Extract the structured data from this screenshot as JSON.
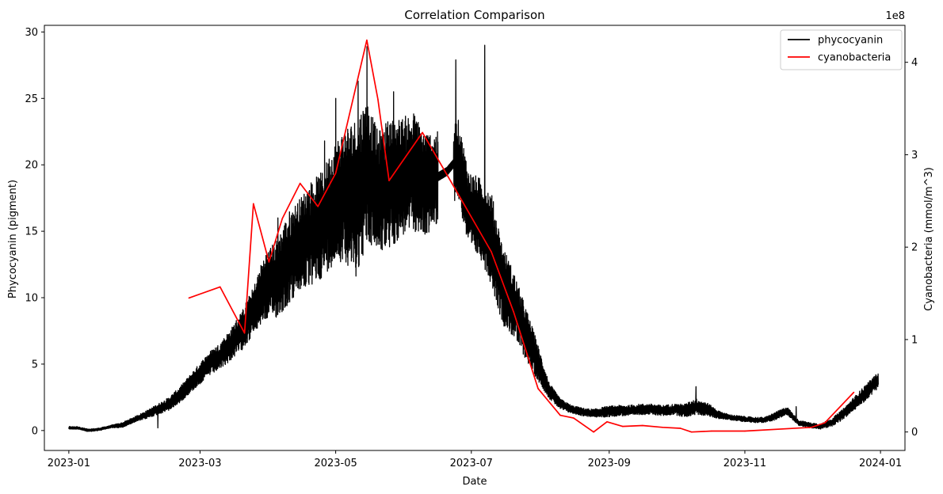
{
  "chart_data": {
    "type": "line",
    "title": "Correlation Comparison",
    "xlabel": "Date",
    "ylabel_left": "Phycocyanin (pigment)",
    "ylabel_right": "Cyanobacteria (mmol/m^3)",
    "right_axis_offset_text": "1e8",
    "x_ticks": [
      "2023-01",
      "2023-03",
      "2023-05",
      "2023-07",
      "2023-09",
      "2023-11",
      "2024-01"
    ],
    "x_tick_dates": [
      "2023-01-01",
      "2023-03-01",
      "2023-05-01",
      "2023-07-01",
      "2023-09-01",
      "2023-11-01",
      "2024-01-01"
    ],
    "xlim": [
      "2022-12-21",
      "2024-01-12"
    ],
    "ylim_left": [
      -1.5,
      30.5
    ],
    "yticks_left": [
      0,
      5,
      10,
      15,
      20,
      25,
      30
    ],
    "ylim_right": [
      -0.2,
      4.4
    ],
    "yticks_right": [
      0,
      1,
      2,
      3,
      4
    ],
    "legend_position": "top-right",
    "grid": false,
    "series": [
      {
        "name": "phycocyanin",
        "axis": "left",
        "color": "#000000",
        "x": [
          "2023-01-01",
          "2023-01-05",
          "2023-01-10",
          "2023-01-15",
          "2023-01-20",
          "2023-01-25",
          "2023-01-30",
          "2023-02-05",
          "2023-02-10",
          "2023-02-15",
          "2023-02-20",
          "2023-02-25",
          "2023-03-01",
          "2023-03-05",
          "2023-03-10",
          "2023-03-15",
          "2023-03-20",
          "2023-03-25",
          "2023-03-30",
          "2023-04-05",
          "2023-04-10",
          "2023-04-15",
          "2023-04-20",
          "2023-04-25",
          "2023-04-30",
          "2023-05-05",
          "2023-05-10",
          "2023-05-15",
          "2023-05-20",
          "2023-05-25",
          "2023-05-30",
          "2023-06-05",
          "2023-06-10",
          "2023-06-15",
          "2023-06-20",
          "2023-06-25",
          "2023-06-30",
          "2023-07-05",
          "2023-07-10",
          "2023-07-15",
          "2023-07-20",
          "2023-07-25",
          "2023-07-30",
          "2023-08-05",
          "2023-08-10",
          "2023-08-15",
          "2023-08-20",
          "2023-08-25",
          "2023-08-30",
          "2023-09-05",
          "2023-09-10",
          "2023-09-15",
          "2023-09-20",
          "2023-09-25",
          "2023-09-30",
          "2023-10-05",
          "2023-10-10",
          "2023-10-15",
          "2023-10-20",
          "2023-10-25",
          "2023-10-30",
          "2023-11-05",
          "2023-11-10",
          "2023-11-15",
          "2023-11-20",
          "2023-11-25",
          "2023-11-30",
          "2023-12-05",
          "2023-12-10",
          "2023-12-15",
          "2023-12-20",
          "2023-12-25",
          "2023-12-31"
        ],
        "y": [
          0.2,
          0.2,
          0.0,
          0.1,
          0.3,
          0.4,
          0.8,
          1.2,
          1.6,
          2.0,
          2.7,
          3.6,
          4.3,
          5.0,
          5.6,
          6.5,
          7.6,
          9.0,
          10.8,
          11.5,
          13.0,
          14.0,
          14.8,
          15.5,
          17.0,
          17.8,
          17.5,
          19.5,
          18.0,
          18.5,
          19.0,
          19.5,
          18.5,
          19.0,
          19.5,
          20.5,
          16.5,
          16.0,
          14.5,
          11.0,
          9.5,
          7.5,
          5.5,
          3.0,
          2.0,
          1.6,
          1.4,
          1.3,
          1.4,
          1.5,
          1.5,
          1.6,
          1.6,
          1.5,
          1.6,
          1.5,
          1.8,
          1.6,
          1.2,
          1.0,
          0.9,
          0.8,
          0.8,
          1.1,
          1.5,
          0.6,
          0.4,
          0.3,
          0.6,
          1.2,
          2.0,
          2.8,
          3.8
        ],
        "band": [
          0.1,
          0.1,
          0.1,
          0.1,
          0.1,
          0.2,
          0.2,
          0.3,
          0.4,
          0.5,
          0.6,
          0.7,
          0.8,
          0.9,
          1.0,
          1.2,
          1.5,
          1.8,
          2.5,
          3.0,
          3.5,
          3.5,
          4.0,
          4.0,
          4.5,
          5.0,
          6.0,
          5.5,
          4.5,
          5.0,
          4.5,
          4.5,
          4.0,
          3.5,
          3.0,
          3.0,
          3.0,
          3.0,
          3.5,
          3.0,
          2.5,
          2.0,
          1.5,
          0.6,
          0.4,
          0.3,
          0.3,
          0.3,
          0.4,
          0.4,
          0.4,
          0.4,
          0.4,
          0.4,
          0.4,
          0.5,
          0.6,
          0.5,
          0.3,
          0.2,
          0.2,
          0.2,
          0.2,
          0.3,
          0.3,
          0.2,
          0.2,
          0.2,
          0.3,
          0.4,
          0.5,
          0.6,
          0.6
        ],
        "peaks": [
          [
            "2023-02-10",
            0.2
          ],
          [
            "2023-03-20",
            6.9
          ],
          [
            "2023-04-05",
            16.0
          ],
          [
            "2023-04-26",
            21.8
          ],
          [
            "2023-05-01",
            25.0
          ],
          [
            "2023-05-11",
            26.3
          ],
          [
            "2023-05-15",
            28.9
          ],
          [
            "2023-05-27",
            25.5
          ],
          [
            "2023-06-24",
            27.9
          ],
          [
            "2023-07-07",
            29.0
          ],
          [
            "2023-10-10",
            3.3
          ],
          [
            "2023-11-24",
            1.8
          ]
        ]
      },
      {
        "name": "cyanobacteria",
        "axis": "right",
        "color": "#ff0000",
        "x": [
          "2023-02-24",
          "2023-03-10",
          "2023-03-21",
          "2023-03-25",
          "2023-04-01",
          "2023-04-07",
          "2023-04-15",
          "2023-04-23",
          "2023-05-01",
          "2023-05-15",
          "2023-05-20",
          "2023-05-25",
          "2023-06-09",
          "2023-06-24",
          "2023-07-10",
          "2023-07-20",
          "2023-07-31",
          "2023-08-10",
          "2023-08-16",
          "2023-08-25",
          "2023-08-31",
          "2023-09-07",
          "2023-09-16",
          "2023-09-25",
          "2023-10-03",
          "2023-10-08",
          "2023-10-17",
          "2023-11-01",
          "2023-12-01",
          "2023-12-07",
          "2023-12-20"
        ],
        "y": [
          1.45,
          1.57,
          1.07,
          2.47,
          1.84,
          2.31,
          2.69,
          2.44,
          2.8,
          4.24,
          3.6,
          2.72,
          3.24,
          2.62,
          1.95,
          1.3,
          0.47,
          0.18,
          0.15,
          0.0,
          0.11,
          0.06,
          0.07,
          0.05,
          0.04,
          0.0,
          0.01,
          0.01,
          0.05,
          0.1,
          0.43
        ]
      }
    ]
  }
}
